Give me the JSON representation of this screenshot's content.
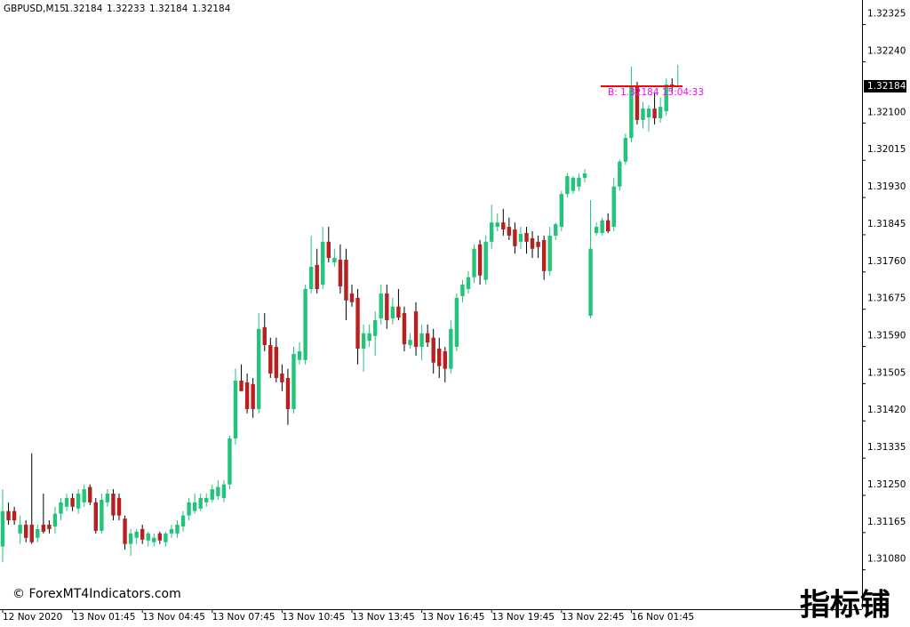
{
  "chart_data": {
    "type": "candlestick",
    "title": "GBPUSD,M15",
    "categories": [
      "12 Nov 2020",
      null,
      null,
      null,
      null,
      null,
      null,
      null,
      null,
      null,
      null,
      null,
      "13 Nov 01:45",
      null,
      null,
      null,
      null,
      null,
      null,
      null,
      null,
      null,
      null,
      null,
      "13 Nov 04:45",
      null,
      null,
      null,
      null,
      null,
      null,
      null,
      null,
      null,
      null,
      null,
      "13 Nov 07:45",
      null,
      null,
      null,
      null,
      null,
      null,
      null,
      null,
      null,
      null,
      null,
      "13 Nov 10:45",
      null,
      null,
      null,
      null,
      null,
      null,
      null,
      null,
      null,
      null,
      null,
      "13 Nov 13:45",
      null,
      null,
      null,
      null,
      null,
      null,
      null,
      null,
      null,
      null,
      null,
      "13 Nov 16:45",
      null,
      null,
      null,
      null,
      null,
      null,
      null,
      null,
      null,
      null,
      null,
      "13 Nov 19:45",
      null,
      null,
      null,
      null,
      null,
      null,
      null,
      null,
      null,
      null,
      null,
      "13 Nov 22:45",
      null,
      null,
      null,
      null,
      null,
      null,
      null,
      null,
      null,
      null,
      null,
      "16 Nov 01:45",
      null,
      null,
      null,
      null,
      null,
      null,
      null,
      null
    ],
    "open": [
      1.31133,
      1.31214,
      1.31214,
      1.31163,
      1.31183,
      1.31183,
      1.31153,
      1.31183,
      1.31183,
      1.31179,
      1.31208,
      1.31224,
      1.31244,
      1.3122,
      1.31234,
      1.31269,
      1.31234,
      1.31169,
      1.31234,
      1.31254,
      1.31244,
      1.31197,
      1.31139,
      1.31153,
      1.31173,
      1.31147,
      1.31143,
      1.31163,
      1.31143,
      1.31163,
      1.31163,
      1.31179,
      1.31204,
      1.31214,
      1.3122,
      1.31234,
      1.3124,
      1.31248,
      1.31244,
      1.31275,
      1.3138,
      1.31512,
      1.31508,
      1.31504,
      1.31447,
      1.31634,
      1.31593,
      1.31589,
      1.31528,
      1.31518,
      1.31447,
      1.31559,
      1.31559,
      1.31721,
      1.31776,
      1.31731,
      1.31829,
      1.31782,
      1.31788,
      1.31788,
      1.31711,
      1.31701,
      1.31585,
      1.31603,
      1.31614,
      1.31654,
      1.31711,
      1.31654,
      1.31681,
      1.31666,
      1.31593,
      1.3167,
      1.31589,
      1.3162,
      1.3161,
      1.31585,
      1.31579,
      1.31539,
      1.31589,
      1.31705,
      1.31721,
      1.31748,
      1.31823,
      1.31742,
      1.31829,
      1.31863,
      1.31873,
      1.31863,
      1.31857,
      1.31829,
      1.31849,
      1.31837,
      1.31829,
      1.31833,
      1.31762,
      1.31843,
      1.31863,
      1.31938,
      1.31945,
      1.31955,
      1.31975,
      1.3166,
      1.31849,
      1.31849,
      1.31878,
      1.31863,
      1.31955,
      1.32012,
      1.32066,
      1.32184,
      1.32107,
      1.32113,
      1.32133,
      1.32111,
      1.32127,
      1.32188,
      1.32184
    ],
    "high": [
      1.31264,
      1.31234,
      1.31224,
      1.31204,
      1.31193,
      1.31346,
      1.31183,
      1.31254,
      1.31193,
      1.31224,
      1.31244,
      1.31254,
      1.31254,
      1.31264,
      1.31275,
      1.31275,
      1.31244,
      1.31254,
      1.31264,
      1.31264,
      1.31254,
      1.31204,
      1.31173,
      1.31173,
      1.31183,
      1.31167,
      1.31163,
      1.31167,
      1.31167,
      1.31183,
      1.31193,
      1.31214,
      1.31244,
      1.31254,
      1.31254,
      1.31254,
      1.31275,
      1.31285,
      1.31285,
      1.31386,
      1.31539,
      1.31549,
      1.31528,
      1.31518,
      1.31666,
      1.31666,
      1.3161,
      1.3161,
      1.31549,
      1.31539,
      1.31589,
      1.31599,
      1.31731,
      1.31843,
      1.31813,
      1.31863,
      1.31863,
      1.31813,
      1.31823,
      1.31813,
      1.31731,
      1.31721,
      1.3164,
      1.3164,
      1.3167,
      1.31731,
      1.31731,
      1.31701,
      1.31721,
      1.31681,
      1.3162,
      1.31691,
      1.3164,
      1.3164,
      1.3163,
      1.3161,
      1.31589,
      1.3165,
      1.31711,
      1.31742,
      1.31762,
      1.31823,
      1.31833,
      1.31843,
      1.31914,
      1.31894,
      1.31904,
      1.31884,
      1.31873,
      1.31863,
      1.31863,
      1.31853,
      1.31843,
      1.31843,
      1.31863,
      1.31873,
      1.31945,
      1.31985,
      1.31979,
      1.31985,
      1.31995,
      1.31924,
      1.31873,
      1.31884,
      1.31894,
      1.31975,
      1.32016,
      1.32076,
      1.32229,
      1.32194,
      1.32148,
      1.32141,
      1.32168,
      1.32158,
      1.32202,
      1.32202,
      1.32233
    ],
    "low": [
      1.31098,
      1.31183,
      1.31183,
      1.31139,
      1.31143,
      1.31139,
      1.31143,
      1.31163,
      1.31163,
      1.31163,
      1.31193,
      1.31214,
      1.31214,
      1.31208,
      1.31224,
      1.31228,
      1.31163,
      1.31163,
      1.31224,
      1.31193,
      1.31193,
      1.31126,
      1.31112,
      1.31139,
      1.31139,
      1.31133,
      1.31133,
      1.31139,
      1.31133,
      1.31153,
      1.31153,
      1.31167,
      1.31193,
      1.31208,
      1.31214,
      1.31224,
      1.31234,
      1.3124,
      1.31234,
      1.31264,
      1.31366,
      1.31488,
      1.31437,
      1.31427,
      1.31437,
      1.31579,
      1.31518,
      1.31508,
      1.31488,
      1.31411,
      1.31437,
      1.31549,
      1.31549,
      1.31711,
      1.31711,
      1.31721,
      1.31782,
      1.31772,
      1.31711,
      1.3165,
      1.31681,
      1.31549,
      1.31532,
      1.31589,
      1.31569,
      1.3164,
      1.3163,
      1.3164,
      1.3165,
      1.31579,
      1.31585,
      1.31569,
      1.31559,
      1.31589,
      1.31528,
      1.31518,
      1.31508,
      1.31528,
      1.31579,
      1.31691,
      1.31711,
      1.31735,
      1.31731,
      1.31731,
      1.31813,
      1.31853,
      1.31843,
      1.31833,
      1.31802,
      1.31813,
      1.31802,
      1.31792,
      1.31792,
      1.31742,
      1.31752,
      1.31833,
      1.31853,
      1.3193,
      1.31938,
      1.31945,
      1.31965,
      1.31654,
      1.31843,
      1.31843,
      1.31849,
      1.31853,
      1.31945,
      1.32005,
      1.32056,
      1.32097,
      1.32087,
      1.32081,
      1.32097,
      1.32101,
      1.32117,
      1.32168,
      1.32184
    ],
    "close": [
      1.31214,
      1.31193,
      1.31193,
      1.31183,
      1.31153,
      1.31143,
      1.31173,
      1.31167,
      1.31173,
      1.31208,
      1.31234,
      1.31244,
      1.31224,
      1.31254,
      1.31264,
      1.31234,
      1.31169,
      1.3124,
      1.31254,
      1.31204,
      1.31204,
      1.31139,
      1.31163,
      1.31167,
      1.31149,
      1.31163,
      1.31153,
      1.31147,
      1.31163,
      1.31173,
      1.31183,
      1.31204,
      1.31234,
      1.31234,
      1.31244,
      1.31244,
      1.31264,
      1.31269,
      1.31275,
      1.3138,
      1.31512,
      1.31488,
      1.31447,
      1.31447,
      1.3163,
      1.31593,
      1.31528,
      1.31518,
      1.31508,
      1.31447,
      1.31573,
      1.31579,
      1.31721,
      1.31772,
      1.31721,
      1.31829,
      1.31792,
      1.31792,
      1.31727,
      1.31695,
      1.31691,
      1.31585,
      1.3162,
      1.3162,
      1.3165,
      1.31711,
      1.3165,
      1.31681,
      1.31656,
      1.31595,
      1.31605,
      1.31589,
      1.3162,
      1.31599,
      1.31553,
      1.31545,
      1.31539,
      1.3163,
      1.31701,
      1.31731,
      1.31748,
      1.31813,
      1.31752,
      1.31829,
      1.31873,
      1.31873,
      1.31857,
      1.31843,
      1.31819,
      1.31847,
      1.31829,
      1.31813,
      1.31817,
      1.31762,
      1.31843,
      1.31869,
      1.31938,
      1.31979,
      1.31975,
      1.31975,
      1.31985,
      1.31813,
      1.31863,
      1.31878,
      1.31853,
      1.31955,
      1.32012,
      1.32066,
      1.32184,
      1.32107,
      1.32133,
      1.32133,
      1.32111,
      1.32137,
      1.32188,
      1.32182,
      1.32184
    ],
    "up_color": "#22c37a",
    "down_color": "#b81f1f",
    "wick_color": "#000000",
    "bid_color": "#ff0000",
    "annotation_color": "#ff00ff",
    "annotation": "B: 1.32184   15:04:33",
    "ylim": [
      1.3099,
      1.32381
    ],
    "yticks": [
      1.32325,
      {
        "value": 1.3224,
        "label": "1.32240"
      },
      {
        "value": 1.321,
        "label": "1.32100"
      },
      1.32015,
      {
        "value": 1.3193,
        "label": "1.31930"
      },
      1.31845,
      {
        "value": 1.3176,
        "label": "1.31760"
      },
      1.31675,
      {
        "value": 1.3159,
        "label": "1.31590"
      },
      1.31505,
      {
        "value": 1.3142,
        "label": "1.31420"
      },
      1.31335,
      {
        "value": 1.3125,
        "label": "1.31250"
      },
      1.31165,
      {
        "value": 1.3108,
        "label": "1.31080"
      }
    ],
    "watermark": "© ForexMT4Indicators.com",
    "logo": "指标铺"
  }
}
